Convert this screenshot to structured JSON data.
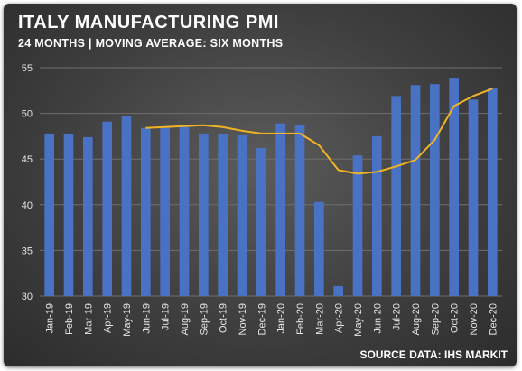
{
  "header": {
    "title": "ITALY MANUFACTURING PMI",
    "subtitle": "24 MONTHS | MOVING AVERAGE: SIX MONTHS"
  },
  "footer": {
    "source": "SOURCE DATA: IHS MARKIT"
  },
  "colors": {
    "bar": "#4a72c4",
    "line": "#f0b323",
    "grid": "#6e6e6e",
    "text": "#ffffff"
  },
  "chart_data": {
    "type": "bar",
    "title": "ITALY MANUFACTURING PMI",
    "subtitle": "24 MONTHS | MOVING AVERAGE: SIX MONTHS",
    "xlabel": "",
    "ylabel": "",
    "ylim": [
      30,
      55
    ],
    "yticks": [
      30,
      35,
      40,
      45,
      50,
      55
    ],
    "grid": true,
    "categories": [
      "Jan-19",
      "Feb-19",
      "Mar-19",
      "Apr-19",
      "May-19",
      "Jun-19",
      "Jul-19",
      "Aug-19",
      "Sep-19",
      "Oct-19",
      "Nov-19",
      "Dec-19",
      "Jan-20",
      "Feb-20",
      "Mar-20",
      "Apr-20",
      "May-20",
      "Jun-20",
      "Jul-20",
      "Aug-20",
      "Sep-20",
      "Oct-20",
      "Nov-20",
      "Dec-20"
    ],
    "series": [
      {
        "type": "bar",
        "values": [
          47.8,
          47.7,
          47.4,
          49.1,
          49.7,
          48.4,
          48.5,
          48.7,
          47.8,
          47.7,
          47.6,
          46.2,
          48.9,
          48.7,
          40.3,
          31.1,
          45.4,
          47.5,
          51.9,
          53.1,
          53.2,
          53.9,
          51.5,
          52.8
        ]
      },
      {
        "type": "line",
        "values": [
          null,
          null,
          null,
          null,
          null,
          48.4,
          48.5,
          48.6,
          48.7,
          48.5,
          48.1,
          47.8,
          47.8,
          47.8,
          46.5,
          43.8,
          43.4,
          43.6,
          44.2,
          44.9,
          47.1,
          50.8,
          51.9,
          52.7
        ]
      }
    ]
  }
}
